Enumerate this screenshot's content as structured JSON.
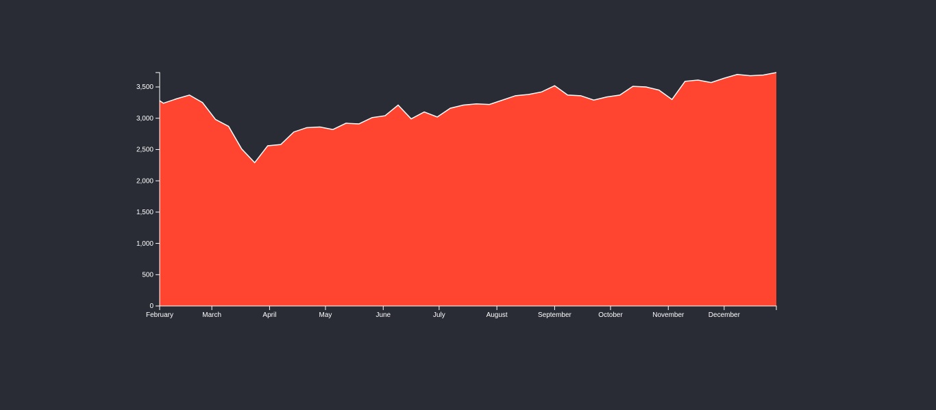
{
  "chart_data": {
    "type": "area",
    "title": "",
    "xlabel": "",
    "ylabel": "",
    "x_start": "2013-02-01",
    "x_end": "2013-12-29",
    "ylim": [
      0,
      3730
    ],
    "y_ticks": [
      0,
      500,
      1000,
      1500,
      2000,
      2500,
      3000,
      3500
    ],
    "y_tick_labels": [
      "0",
      "500",
      "1,000",
      "1,500",
      "2,000",
      "2,500",
      "3,000",
      "3,500"
    ],
    "x_ticks": [
      {
        "date": "2013-02-01",
        "label": "February"
      },
      {
        "date": "2013-03-01",
        "label": "March"
      },
      {
        "date": "2013-04-01",
        "label": "April"
      },
      {
        "date": "2013-05-01",
        "label": "May"
      },
      {
        "date": "2013-06-01",
        "label": "June"
      },
      {
        "date": "2013-07-01",
        "label": "July"
      },
      {
        "date": "2013-08-01",
        "label": "August"
      },
      {
        "date": "2013-09-01",
        "label": "September"
      },
      {
        "date": "2013-10-01",
        "label": "October"
      },
      {
        "date": "2013-11-01",
        "label": "November"
      },
      {
        "date": "2013-12-01",
        "label": "December"
      }
    ],
    "grid": false,
    "colors": {
      "fill": "#ff4530",
      "stroke": "#ffffff",
      "axis": "#ffffff",
      "background": "#292c35"
    },
    "series": [
      {
        "x": [
          "2013-01-27",
          "2013-02-03",
          "2013-02-10",
          "2013-02-17",
          "2013-02-24",
          "2013-03-03",
          "2013-03-10",
          "2013-03-17",
          "2013-03-24",
          "2013-03-31",
          "2013-04-07",
          "2013-04-14",
          "2013-04-21",
          "2013-04-28",
          "2013-05-05",
          "2013-05-12",
          "2013-05-19",
          "2013-05-26",
          "2013-06-02",
          "2013-06-09",
          "2013-06-16",
          "2013-06-23",
          "2013-06-30",
          "2013-07-07",
          "2013-07-14",
          "2013-07-21",
          "2013-07-28",
          "2013-08-04",
          "2013-08-11",
          "2013-08-18",
          "2013-08-25",
          "2013-09-01",
          "2013-09-08",
          "2013-09-15",
          "2013-09-22",
          "2013-09-29",
          "2013-10-06",
          "2013-10-13",
          "2013-10-20",
          "2013-10-27",
          "2013-11-03",
          "2013-11-10",
          "2013-11-17",
          "2013-11-24",
          "2013-12-01",
          "2013-12-08",
          "2013-12-15",
          "2013-12-22",
          "2013-12-29"
        ],
        "y": [
          3280,
          3240,
          3310,
          3370,
          3250,
          2980,
          2870,
          2510,
          2290,
          2560,
          2580,
          2780,
          2850,
          2860,
          2820,
          2920,
          2910,
          3010,
          3040,
          3210,
          2990,
          3100,
          3020,
          3160,
          3210,
          3230,
          3220,
          3290,
          3360,
          3380,
          3420,
          3520,
          3370,
          3360,
          3290,
          3340,
          3370,
          3510,
          3500,
          3450,
          3300,
          3590,
          3610,
          3570,
          3640,
          3700,
          3680,
          3690,
          3730
        ]
      }
    ]
  }
}
